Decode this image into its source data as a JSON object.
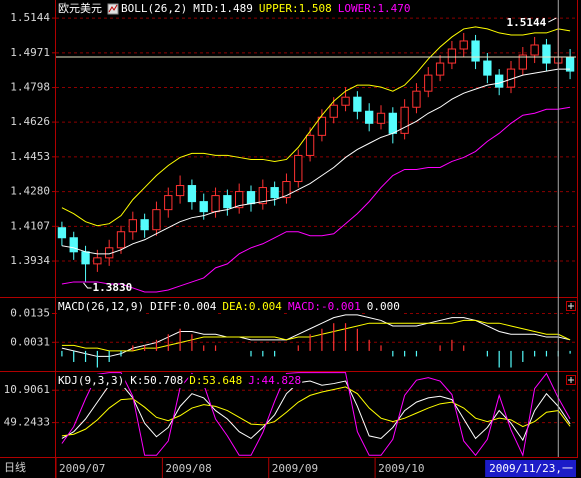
{
  "chart_data": [
    {
      "type": "candlestick",
      "title": "欧元美元",
      "indicator": "BOLL(26,2)",
      "period": "日线",
      "categories": [
        "2009/07",
        null,
        null,
        null,
        null,
        null,
        null,
        null,
        null,
        "2009/08",
        null,
        null,
        null,
        null,
        null,
        null,
        null,
        null,
        "2009/09",
        null,
        null,
        null,
        null,
        null,
        null,
        null,
        null,
        "2009/10",
        null,
        null,
        null,
        null,
        null,
        null,
        null,
        null,
        null,
        null,
        null,
        null,
        null,
        null,
        "2009/11/23,一",
        null
      ],
      "cursor": 42,
      "open": [
        1.41,
        1.405,
        1.398,
        1.392,
        1.395,
        1.4,
        1.408,
        1.414,
        1.409,
        1.419,
        1.426,
        1.431,
        1.423,
        1.418,
        1.426,
        1.42,
        1.428,
        1.422,
        1.43,
        1.425,
        1.433,
        1.446,
        1.456,
        1.465,
        1.471,
        1.475,
        1.468,
        1.462,
        1.467,
        1.457,
        1.47,
        1.478,
        1.486,
        1.492,
        1.499,
        1.503,
        1.493,
        1.486,
        1.48,
        1.489,
        1.496,
        1.501,
        1.492,
        1.495
      ],
      "high": [
        1.413,
        1.408,
        1.401,
        1.399,
        1.404,
        1.411,
        1.418,
        1.417,
        1.423,
        1.43,
        1.436,
        1.434,
        1.427,
        1.43,
        1.429,
        1.432,
        1.431,
        1.434,
        1.433,
        1.437,
        1.449,
        1.46,
        1.469,
        1.475,
        1.48,
        1.478,
        1.472,
        1.471,
        1.47,
        1.474,
        1.482,
        1.49,
        1.496,
        1.503,
        1.507,
        1.506,
        1.497,
        1.489,
        1.493,
        1.5,
        1.505,
        1.504,
        1.5144,
        1.499
      ],
      "low": [
        1.401,
        1.394,
        1.383,
        1.388,
        1.391,
        1.397,
        1.404,
        1.405,
        1.406,
        1.415,
        1.422,
        1.419,
        1.414,
        1.415,
        1.416,
        1.417,
        1.418,
        1.419,
        1.421,
        1.422,
        1.43,
        1.443,
        1.453,
        1.462,
        1.468,
        1.464,
        1.458,
        1.459,
        1.452,
        1.454,
        1.467,
        1.475,
        1.483,
        1.489,
        1.495,
        1.489,
        1.482,
        1.476,
        1.477,
        1.486,
        1.492,
        1.488,
        1.489,
        1.484
      ],
      "close": [
        1.405,
        1.398,
        1.392,
        1.395,
        1.4,
        1.408,
        1.414,
        1.409,
        1.419,
        1.426,
        1.431,
        1.423,
        1.418,
        1.426,
        1.42,
        1.428,
        1.422,
        1.43,
        1.425,
        1.433,
        1.446,
        1.456,
        1.465,
        1.471,
        1.475,
        1.468,
        1.462,
        1.467,
        1.457,
        1.47,
        1.478,
        1.486,
        1.492,
        1.499,
        1.503,
        1.493,
        1.486,
        1.48,
        1.489,
        1.496,
        1.501,
        1.492,
        1.495,
        1.488
      ],
      "up_color": "#ff3232",
      "down_color": "#54fcfc",
      "series": [
        {
          "name": "MID:1.489",
          "color": "#ffffff",
          "values": [
            1.401,
            1.4,
            1.398,
            1.397,
            1.397,
            1.399,
            1.402,
            1.404,
            1.407,
            1.41,
            1.413,
            1.415,
            1.416,
            1.418,
            1.419,
            1.421,
            1.422,
            1.423,
            1.424,
            1.426,
            1.429,
            1.432,
            1.436,
            1.44,
            1.445,
            1.449,
            1.452,
            1.455,
            1.457,
            1.46,
            1.463,
            1.467,
            1.47,
            1.474,
            1.477,
            1.479,
            1.481,
            1.482,
            1.484,
            1.486,
            1.487,
            1.488,
            1.489,
            1.489
          ]
        },
        {
          "name": "UPPER:1.508",
          "color": "#ffff00",
          "values": [
            1.42,
            1.417,
            1.413,
            1.411,
            1.412,
            1.416,
            1.424,
            1.43,
            1.436,
            1.441,
            1.445,
            1.447,
            1.447,
            1.446,
            1.446,
            1.445,
            1.444,
            1.444,
            1.443,
            1.444,
            1.45,
            1.458,
            1.466,
            1.473,
            1.478,
            1.481,
            1.481,
            1.48,
            1.478,
            1.481,
            1.487,
            1.494,
            1.5,
            1.505,
            1.509,
            1.51,
            1.509,
            1.507,
            1.506,
            1.506,
            1.507,
            1.507,
            1.509,
            1.508
          ]
        },
        {
          "name": "LOWER:1.470",
          "color": "#ff00ff",
          "values": [
            1.382,
            1.383,
            1.383,
            1.383,
            1.382,
            1.382,
            1.38,
            1.378,
            1.378,
            1.379,
            1.381,
            1.383,
            1.385,
            1.39,
            1.392,
            1.397,
            1.4,
            1.402,
            1.405,
            1.408,
            1.408,
            1.406,
            1.406,
            1.407,
            1.412,
            1.417,
            1.423,
            1.43,
            1.436,
            1.439,
            1.439,
            1.44,
            1.44,
            1.443,
            1.445,
            1.448,
            1.453,
            1.457,
            1.462,
            1.466,
            1.467,
            1.469,
            1.469,
            1.47
          ]
        }
      ],
      "annotations": [
        {
          "value": 1.5144
        },
        {
          "value": 1.383,
          "label": "1.3830"
        }
      ],
      "ylim": [
        1.3755,
        1.5234
      ],
      "yticks": [
        1.5144,
        1.4971,
        1.4798,
        1.4626,
        1.4453,
        {
          "value": 1.428,
          "label": "1.4280"
        },
        1.4107,
        1.3934
      ],
      "grid": true
    },
    {
      "type": "macd",
      "title": "MACD(26,12,9)",
      "series": [
        {
          "name": "DIFF:0.004",
          "color": "#ffffff",
          "values": [
            0.001,
            0.0,
            -0.001,
            -0.002,
            -0.002,
            -0.001,
            0.001,
            0.002,
            0.003,
            0.005,
            0.007,
            0.007,
            0.006,
            0.006,
            0.005,
            0.005,
            0.004,
            0.004,
            0.004,
            0.004,
            0.006,
            0.008,
            0.01,
            0.012,
            0.013,
            0.013,
            0.012,
            0.011,
            0.009,
            0.009,
            0.009,
            0.01,
            0.011,
            0.012,
            0.012,
            0.011,
            0.009,
            0.007,
            0.006,
            0.006,
            0.006,
            0.005,
            0.005,
            0.004
          ]
        },
        {
          "name": "DEA:0.004",
          "color": "#ffff00",
          "values": [
            0.002,
            0.002,
            0.001,
            0.001,
            0.0,
            0.0,
            0.0,
            0.001,
            0.001,
            0.002,
            0.003,
            0.004,
            0.005,
            0.005,
            0.005,
            0.005,
            0.005,
            0.005,
            0.005,
            0.004,
            0.005,
            0.005,
            0.006,
            0.007,
            0.008,
            0.009,
            0.01,
            0.01,
            0.01,
            0.01,
            0.01,
            0.01,
            0.01,
            0.01,
            0.011,
            0.011,
            0.01,
            0.01,
            0.009,
            0.008,
            0.007,
            0.006,
            0.006,
            0.004
          ]
        },
        {
          "name": "MACD:-0.001",
          "color": "#ff00ff",
          "style": "bar",
          "up_color": "#ff3232",
          "down_color": "#54fcfc",
          "values": [
            -0.002,
            -0.004,
            -0.004,
            -0.006,
            -0.004,
            -0.002,
            0.002,
            0.002,
            0.004,
            0.006,
            0.008,
            0.006,
            0.002,
            0.002,
            0.0,
            0.0,
            -0.002,
            -0.002,
            -0.002,
            0.0,
            0.002,
            0.006,
            0.008,
            0.01,
            0.01,
            0.008,
            0.004,
            0.002,
            -0.002,
            -0.002,
            -0.002,
            0.0,
            0.002,
            0.004,
            0.002,
            0.0,
            -0.002,
            -0.006,
            -0.006,
            -0.004,
            -0.002,
            -0.002,
            -0.002,
            -0.001
          ]
        }
      ],
      "note": "0.000",
      "ylim": [
        -0.0069,
        0.0191
      ],
      "yticks": [
        0.0135,
        0.0031
      ],
      "grid": true
    },
    {
      "type": "kdj",
      "title": "KDJ(9,3,3)",
      "series": [
        {
          "name": "K:50.708",
          "color": "#ffffff",
          "values": [
            68,
            60,
            45,
            25,
            5,
            3,
            20,
            50,
            66,
            55,
            30,
            15,
            20,
            35,
            45,
            60,
            68,
            55,
            40,
            15,
            2,
            0,
            5,
            3,
            0,
            30,
            65,
            68,
            55,
            35,
            25,
            20,
            18,
            22,
            45,
            68,
            55,
            35,
            50,
            70,
            35,
            15,
            30,
            50.708
          ]
        },
        {
          "name": "D:53.648",
          "color": "#ffff00",
          "values": [
            65,
            63,
            57,
            46,
            32,
            22,
            21,
            31,
            43,
            47,
            41,
            32,
            28,
            30,
            35,
            43,
            51,
            52,
            48,
            37,
            25,
            17,
            13,
            10,
            7,
            15,
            32,
            44,
            48,
            44,
            38,
            32,
            27,
            25,
            32,
            44,
            48,
            44,
            46,
            54,
            48,
            37,
            35,
            53.648
          ]
        },
        {
          "name": "J:44.828",
          "color": "#ff00ff",
          "values": [
            74,
            54,
            21,
            -8,
            -10,
            -10,
            18,
            88,
            88,
            71,
            8,
            -9,
            4,
            45,
            65,
            88,
            88,
            61,
            24,
            -9,
            -10,
            -10,
            -10,
            -10,
            -10,
            60,
            88,
            88,
            69,
            17,
            -1,
            -4,
            0,
            16,
            71,
            88,
            69,
            17,
            58,
            88,
            9,
            -9,
            20,
            44.828
          ]
        }
      ],
      "ylim": [
        90,
        -10.7
      ],
      "yticks": [
        10.9061,
        49.2433
      ],
      "grid": true
    }
  ]
}
